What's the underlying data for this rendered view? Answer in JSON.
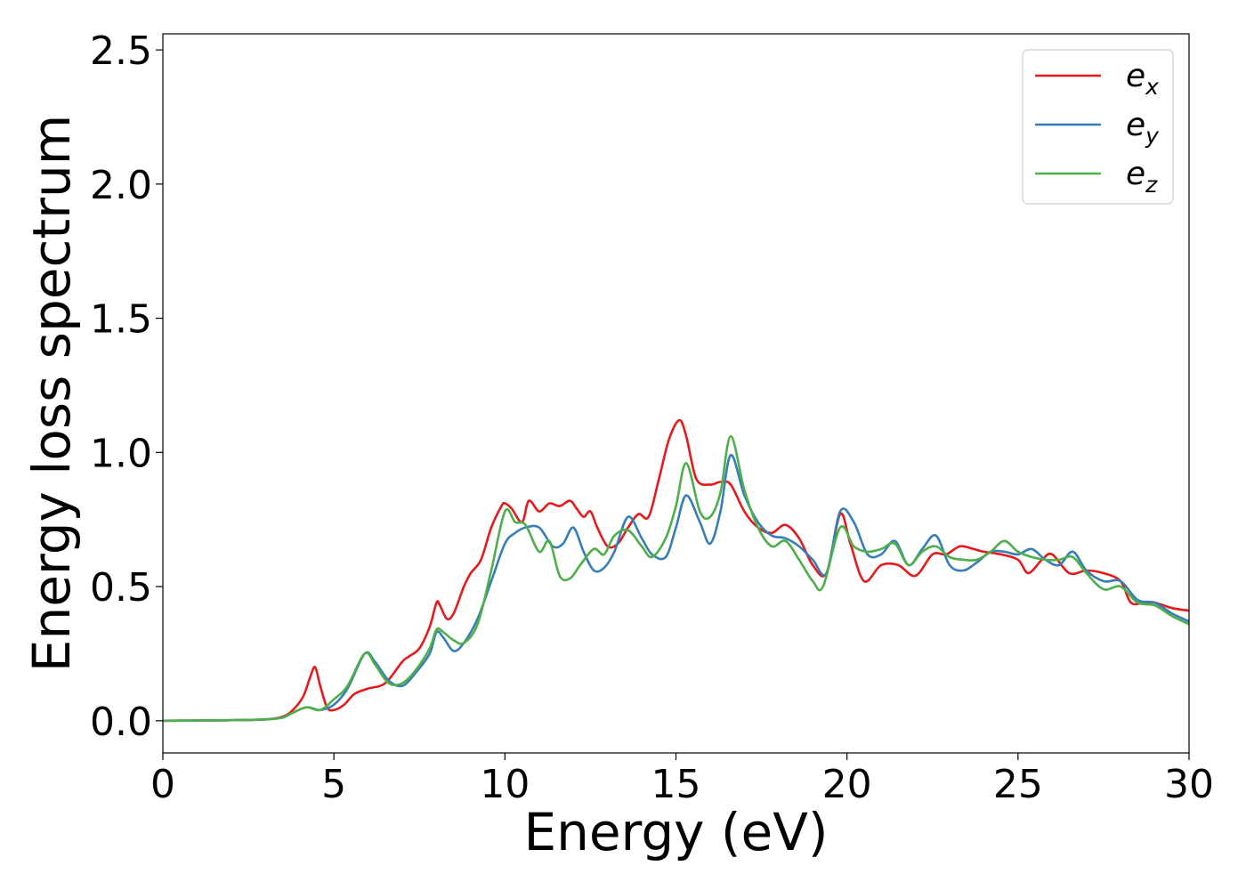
{
  "chart_data": {
    "type": "line",
    "xlabel": "Energy (eV)",
    "ylabel": "Energy loss spectrum",
    "xlim": [
      0,
      30
    ],
    "ylim": [
      -0.12,
      2.56
    ],
    "xticks": [
      "0",
      "5",
      "10",
      "15",
      "20",
      "25",
      "30"
    ],
    "yticks": [
      "0.0",
      "0.5",
      "1.0",
      "1.5",
      "2.0",
      "2.5"
    ],
    "grid": false,
    "legend_position": "top-right",
    "series": [
      {
        "name": "e_x",
        "label_base": "e",
        "label_sub": "x",
        "color": "#e41a1c",
        "x": [
          0,
          2,
          3.0,
          3.5,
          3.8,
          4.1,
          4.3,
          4.45,
          4.6,
          4.8,
          5.0,
          5.3,
          5.6,
          6.0,
          6.5,
          7.0,
          7.2,
          7.5,
          7.8,
          8.0,
          8.1,
          8.3,
          8.5,
          8.8,
          9.0,
          9.3,
          9.6,
          9.9,
          10.0,
          10.2,
          10.5,
          10.7,
          11.0,
          11.3,
          11.6,
          11.9,
          12.1,
          12.3,
          12.5,
          12.7,
          13.0,
          13.3,
          13.6,
          13.9,
          14.2,
          14.5,
          14.8,
          15.1,
          15.3,
          15.6,
          16.0,
          16.3,
          16.6,
          17.0,
          17.4,
          17.8,
          18.2,
          18.6,
          19.0,
          19.4,
          19.8,
          20.1,
          20.5,
          21.0,
          21.5,
          22.0,
          22.5,
          22.9,
          23.3,
          23.7,
          24.0,
          24.5,
          25.0,
          25.3,
          25.7,
          26.0,
          26.5,
          27.0,
          27.5,
          28.0,
          28.3,
          28.7,
          29.0,
          29.5,
          30
        ],
        "y": [
          0.0,
          0.002,
          0.005,
          0.015,
          0.04,
          0.09,
          0.16,
          0.2,
          0.13,
          0.05,
          0.04,
          0.06,
          0.1,
          0.12,
          0.14,
          0.22,
          0.24,
          0.27,
          0.35,
          0.44,
          0.43,
          0.38,
          0.4,
          0.5,
          0.55,
          0.6,
          0.72,
          0.8,
          0.81,
          0.79,
          0.74,
          0.82,
          0.78,
          0.81,
          0.8,
          0.82,
          0.79,
          0.76,
          0.78,
          0.72,
          0.65,
          0.66,
          0.72,
          0.77,
          0.76,
          0.9,
          1.05,
          1.12,
          1.06,
          0.9,
          0.88,
          0.89,
          0.88,
          0.78,
          0.72,
          0.7,
          0.73,
          0.68,
          0.58,
          0.55,
          0.77,
          0.66,
          0.52,
          0.58,
          0.58,
          0.54,
          0.62,
          0.62,
          0.65,
          0.64,
          0.63,
          0.62,
          0.6,
          0.55,
          0.6,
          0.62,
          0.55,
          0.56,
          0.55,
          0.52,
          0.44,
          0.44,
          0.44,
          0.42,
          0.41
        ]
      },
      {
        "name": "e_y",
        "label_base": "e",
        "label_sub": "y",
        "color": "#377eb8",
        "x": [
          0,
          2,
          3.0,
          3.5,
          3.8,
          4.2,
          4.6,
          5.0,
          5.4,
          5.9,
          6.2,
          6.6,
          7.0,
          7.4,
          7.8,
          8.0,
          8.2,
          8.5,
          8.8,
          9.2,
          9.6,
          10.0,
          10.3,
          10.6,
          11.0,
          11.4,
          11.7,
          12.0,
          12.3,
          12.6,
          12.9,
          13.2,
          13.6,
          14.0,
          14.3,
          14.7,
          15.0,
          15.3,
          15.7,
          16.0,
          16.3,
          16.6,
          17.0,
          17.4,
          17.8,
          18.2,
          18.6,
          19.0,
          19.4,
          19.8,
          20.2,
          20.6,
          21.0,
          21.4,
          21.8,
          22.2,
          22.6,
          23.0,
          23.4,
          23.8,
          24.2,
          24.6,
          25.0,
          25.4,
          25.8,
          26.2,
          26.6,
          27.0,
          27.5,
          28.0,
          28.5,
          29.0,
          29.5,
          30
        ],
        "y": [
          0.0,
          0.002,
          0.005,
          0.012,
          0.03,
          0.05,
          0.04,
          0.06,
          0.12,
          0.25,
          0.22,
          0.15,
          0.13,
          0.18,
          0.25,
          0.33,
          0.31,
          0.26,
          0.29,
          0.38,
          0.52,
          0.66,
          0.7,
          0.72,
          0.72,
          0.65,
          0.66,
          0.72,
          0.63,
          0.56,
          0.57,
          0.63,
          0.76,
          0.68,
          0.62,
          0.61,
          0.72,
          0.84,
          0.74,
          0.66,
          0.78,
          0.99,
          0.84,
          0.74,
          0.69,
          0.68,
          0.65,
          0.6,
          0.55,
          0.78,
          0.74,
          0.62,
          0.62,
          0.67,
          0.58,
          0.64,
          0.69,
          0.58,
          0.56,
          0.59,
          0.63,
          0.63,
          0.62,
          0.64,
          0.6,
          0.58,
          0.63,
          0.56,
          0.52,
          0.52,
          0.45,
          0.44,
          0.4,
          0.37
        ]
      },
      {
        "name": "e_z",
        "label_base": "e",
        "label_sub": "z",
        "color": "#4daf4a",
        "x": [
          0,
          2,
          3.0,
          3.5,
          3.8,
          4.2,
          4.6,
          5.0,
          5.4,
          5.9,
          6.2,
          6.6,
          7.0,
          7.4,
          7.8,
          8.0,
          8.2,
          8.5,
          8.8,
          9.2,
          9.6,
          10.0,
          10.3,
          10.6,
          11.0,
          11.3,
          11.6,
          11.9,
          12.2,
          12.6,
          12.9,
          13.2,
          13.6,
          14.0,
          14.3,
          14.7,
          15.0,
          15.3,
          15.7,
          16.0,
          16.3,
          16.6,
          17.0,
          17.4,
          17.8,
          18.2,
          18.6,
          19.0,
          19.3,
          19.8,
          20.2,
          20.6,
          21.0,
          21.4,
          21.8,
          22.2,
          22.6,
          23.0,
          23.4,
          23.8,
          24.2,
          24.6,
          25.0,
          25.4,
          25.8,
          26.2,
          26.6,
          27.0,
          27.5,
          28.0,
          28.5,
          29.0,
          29.5,
          30
        ],
        "y": [
          0.0,
          0.002,
          0.005,
          0.012,
          0.03,
          0.05,
          0.04,
          0.08,
          0.13,
          0.25,
          0.21,
          0.14,
          0.14,
          0.19,
          0.27,
          0.34,
          0.33,
          0.3,
          0.29,
          0.36,
          0.56,
          0.78,
          0.74,
          0.73,
          0.63,
          0.67,
          0.54,
          0.53,
          0.58,
          0.64,
          0.62,
          0.69,
          0.71,
          0.65,
          0.61,
          0.68,
          0.8,
          0.96,
          0.78,
          0.76,
          0.85,
          1.06,
          0.86,
          0.72,
          0.65,
          0.67,
          0.6,
          0.52,
          0.5,
          0.72,
          0.65,
          0.63,
          0.64,
          0.66,
          0.58,
          0.63,
          0.65,
          0.61,
          0.6,
          0.6,
          0.63,
          0.67,
          0.63,
          0.61,
          0.6,
          0.6,
          0.61,
          0.55,
          0.49,
          0.5,
          0.44,
          0.43,
          0.39,
          0.36
        ]
      }
    ]
  }
}
